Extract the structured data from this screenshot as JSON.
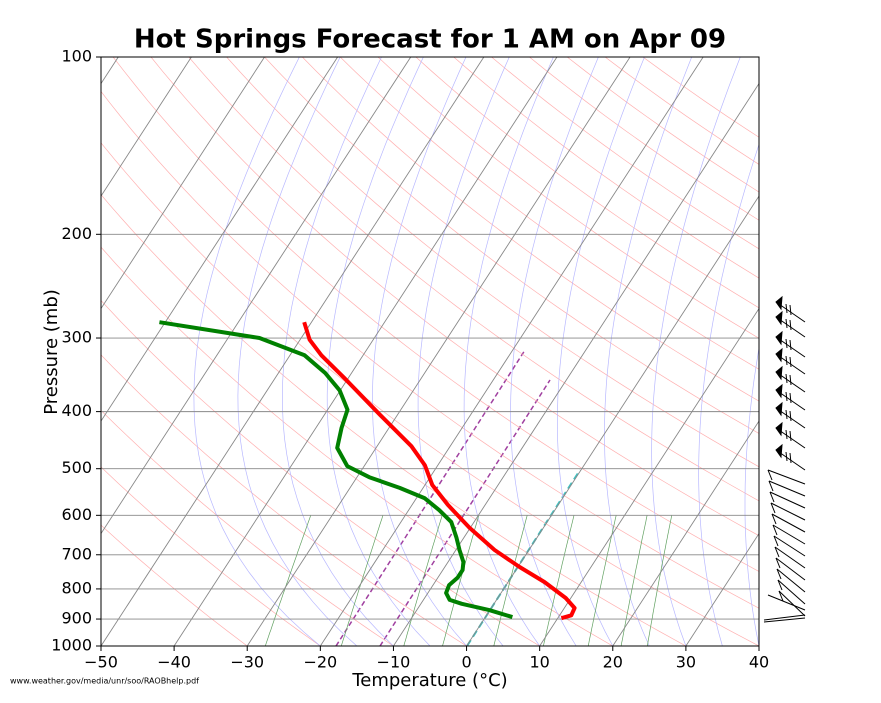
{
  "chart_data": {
    "type": "skewt",
    "title": "Hot Springs Forecast for 1 AM on Apr 09",
    "x_label": "Temperature (°C)",
    "y_label": "Pressure (mb)",
    "source": "www.weather.gov/media/unr/soo/RAOBhelp.pdf",
    "xlim": [
      -50,
      40
    ],
    "xticks": [
      {
        "value": -50,
        "label": "−50"
      },
      {
        "value": -40,
        "label": "−40"
      },
      {
        "value": -30,
        "label": "−30"
      },
      {
        "value": -20,
        "label": "−20"
      },
      {
        "value": -10,
        "label": "−10"
      },
      0,
      10,
      20,
      30,
      40
    ],
    "ylim": [
      1000,
      100
    ],
    "yticks": [
      100,
      200,
      300,
      400,
      500,
      600,
      700,
      800,
      900,
      1000
    ],
    "log_y": true,
    "grid": true,
    "series": [
      {
        "color": "#ff0000",
        "x": [
          10.5,
          11.6,
          11.4,
          9.3,
          5.0,
          0.2,
          -4.7,
          -10.1,
          -15.1,
          -19.0,
          -21.8,
          -25.3,
          -32.4,
          -40.5,
          -45.7,
          -48.7,
          -51.0
        ],
        "y": [
          897,
          887,
          862,
          829,
          779,
          734,
          687,
          630,
          576,
          533,
          493,
          458,
          405,
          351,
          321,
          302,
          282
        ]
      },
      {
        "color": "#008000",
        "x": [
          3.7,
          -0.1,
          -4.4,
          -6.4,
          -7.5,
          -7.8,
          -7.3,
          -7.3,
          -7.9,
          -9.5,
          -11.0,
          -13.1,
          -15.8,
          -18.9,
          -23.2,
          -28.3,
          -32.3,
          -35.3,
          -36.5,
          -37.3,
          -40.1,
          -43.6,
          -48.0,
          -55.7,
          -70.8
        ],
        "y": [
          893,
          869,
          848,
          835,
          813,
          788,
          766,
          743,
          720,
          687,
          655,
          616,
          588,
          561,
          539,
          517,
          495,
          461,
          426,
          397,
          368,
          344,
          321,
          300,
          282
        ]
      }
    ]
  }
}
